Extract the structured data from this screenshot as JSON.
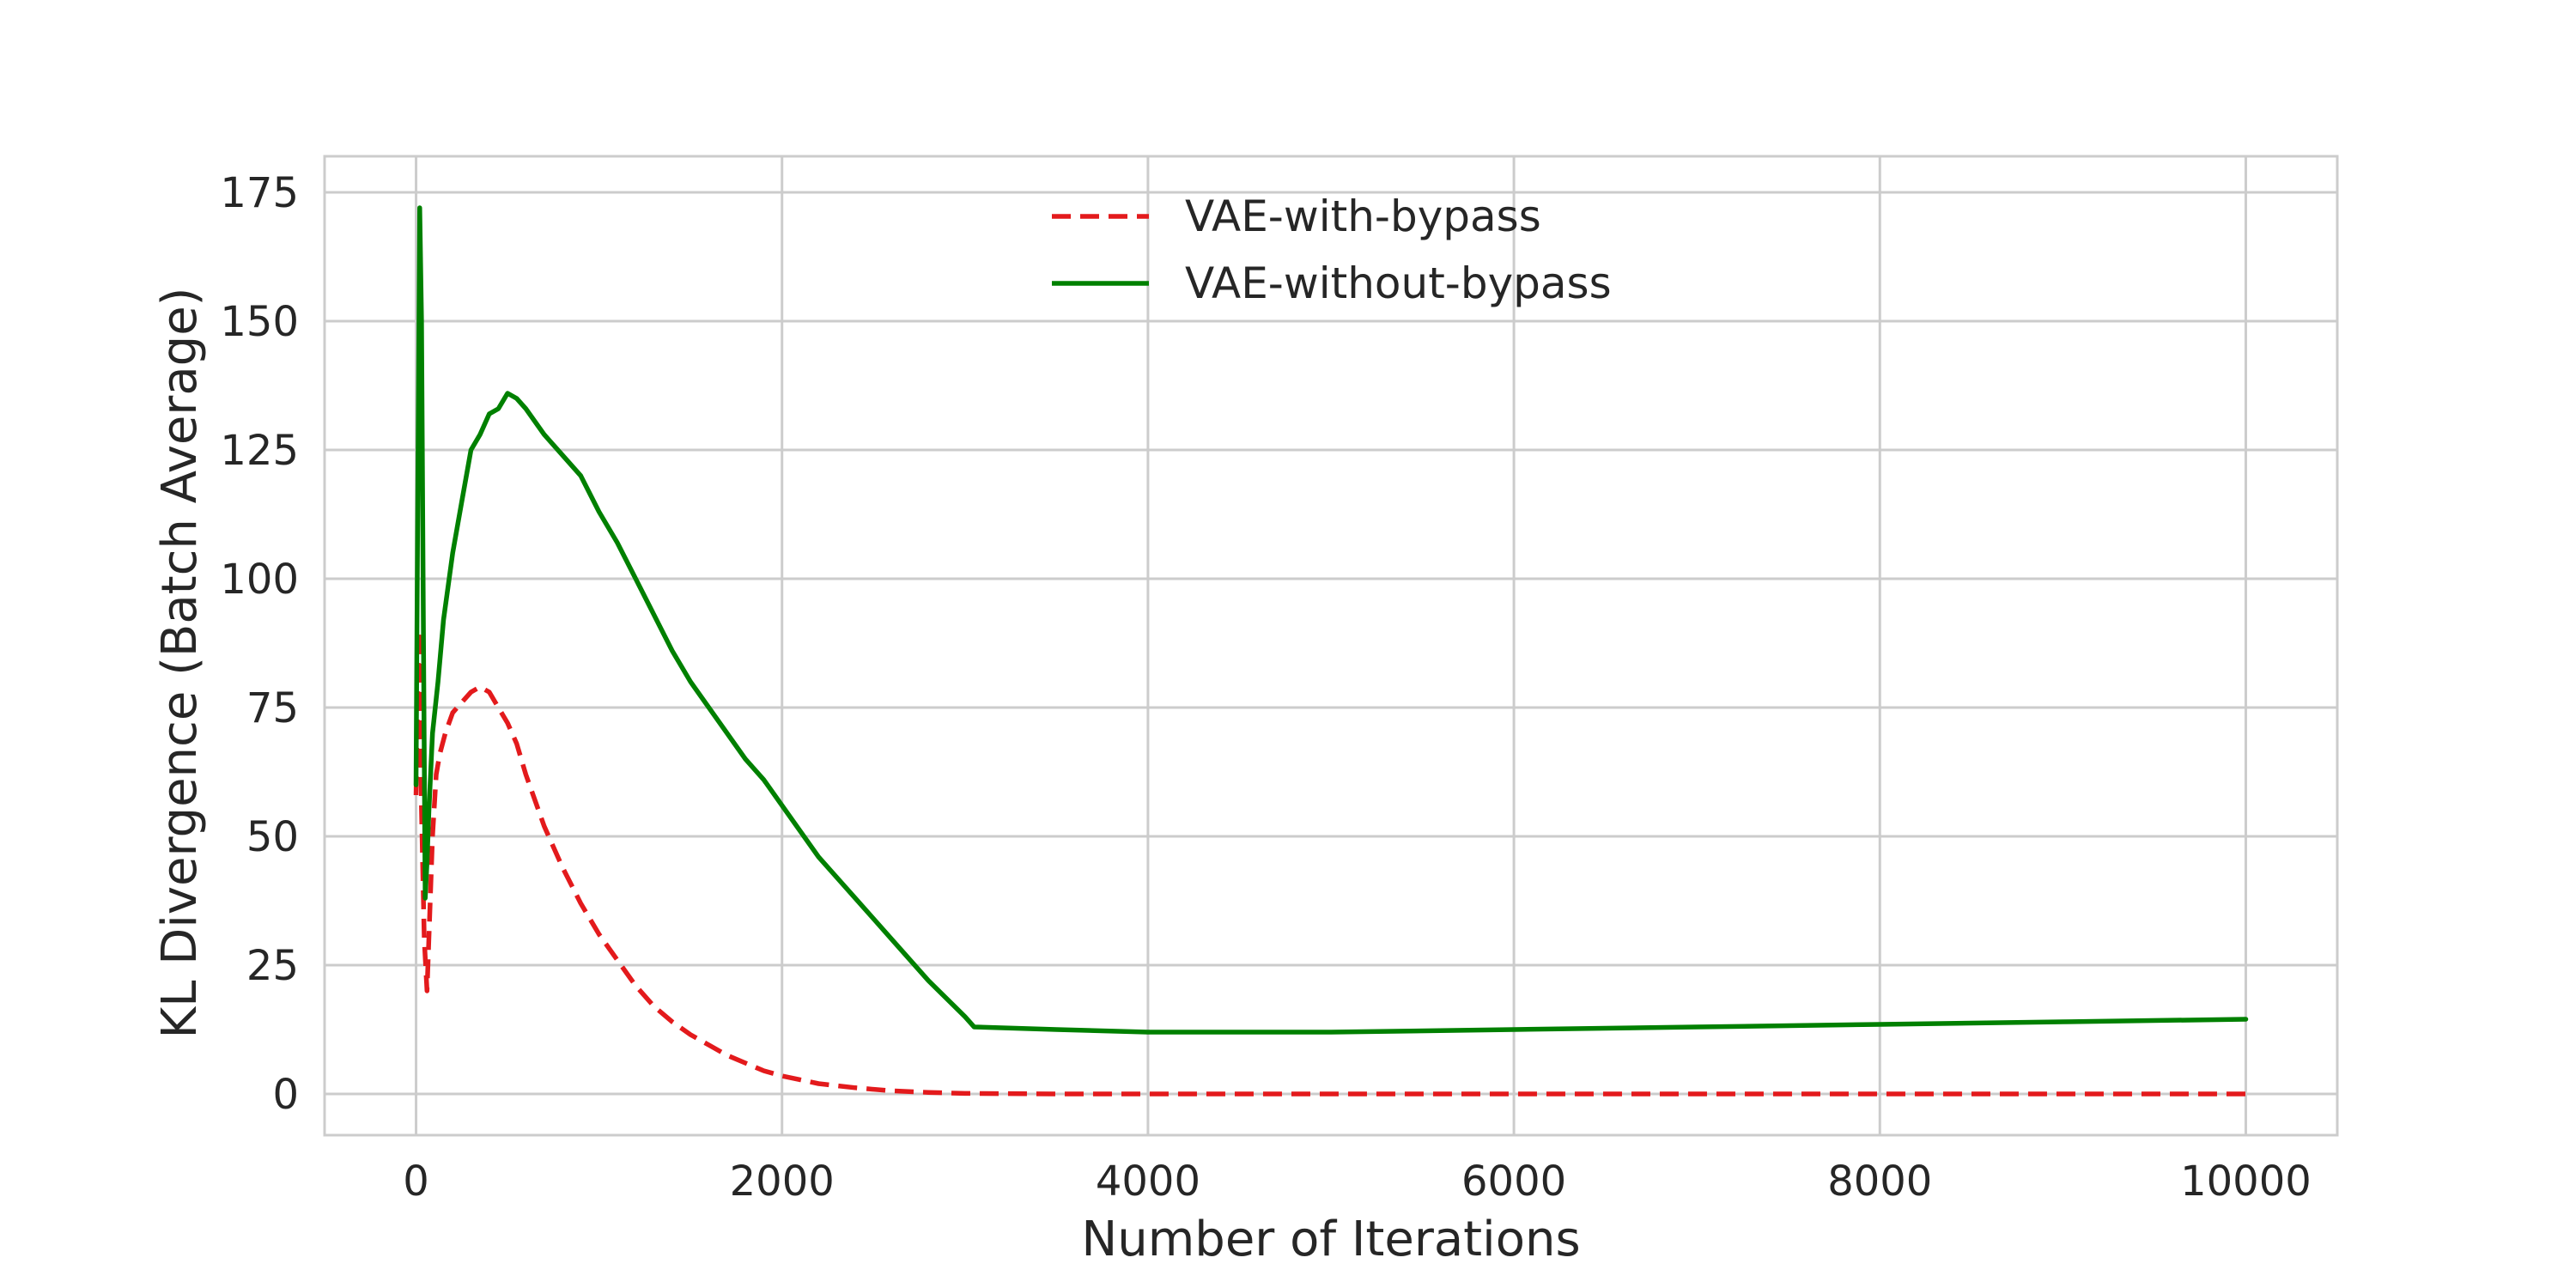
{
  "chart_data": {
    "type": "line",
    "title": "",
    "xlabel": "Number of Iterations",
    "ylabel": "KL Divergence (Batch Average)",
    "xlim": [
      -500,
      10500
    ],
    "ylim": [
      -8,
      182
    ],
    "xticks": [
      0,
      2000,
      4000,
      6000,
      8000,
      10000
    ],
    "yticks": [
      0,
      25,
      50,
      75,
      100,
      125,
      150,
      175
    ],
    "grid": true,
    "legend_position": "top-center",
    "series": [
      {
        "name": "VAE-with-bypass",
        "color": "#e31a1c",
        "style": "dashed",
        "x": [
          0,
          15,
          30,
          45,
          60,
          75,
          90,
          110,
          130,
          160,
          200,
          250,
          300,
          350,
          400,
          450,
          500,
          550,
          600,
          700,
          800,
          900,
          1000,
          1100,
          1200,
          1300,
          1400,
          1500,
          1600,
          1700,
          1800,
          1900,
          2000,
          2200,
          2400,
          2600,
          2800,
          3000,
          3500,
          4000,
          5000,
          6000,
          7000,
          8000,
          9000,
          10000
        ],
        "y": [
          58,
          90,
          55,
          30,
          20,
          35,
          50,
          62,
          66,
          70,
          74,
          76,
          78,
          79,
          78,
          75,
          72,
          68,
          62,
          52,
          44,
          37,
          31,
          26,
          21,
          17,
          14,
          11.5,
          9.5,
          7.5,
          6,
          4.5,
          3.5,
          2,
          1.2,
          0.6,
          0.3,
          0.1,
          0,
          0,
          0,
          0,
          0,
          0,
          0,
          0
        ]
      },
      {
        "name": "VAE-without-bypass",
        "color": "#008000",
        "style": "solid",
        "x": [
          0,
          10,
          20,
          30,
          40,
          50,
          60,
          70,
          90,
          120,
          150,
          200,
          250,
          300,
          350,
          400,
          450,
          500,
          550,
          600,
          700,
          800,
          900,
          1000,
          1100,
          1200,
          1300,
          1400,
          1500,
          1600,
          1700,
          1800,
          1900,
          2000,
          2100,
          2200,
          2400,
          2600,
          2800,
          3000,
          3050,
          3500,
          4000,
          4500,
          5000,
          6000,
          7000,
          8000,
          9000,
          10000
        ],
        "y": [
          60,
          120,
          172,
          150,
          90,
          38,
          45,
          55,
          70,
          80,
          92,
          105,
          115,
          125,
          128,
          132,
          133,
          136,
          135,
          133,
          128,
          124,
          120,
          113,
          107,
          100,
          93,
          86,
          80,
          75,
          70,
          65,
          61,
          56,
          51,
          46,
          38,
          30,
          22,
          15,
          13,
          12.5,
          12,
          12,
          12,
          12.5,
          13,
          13.5,
          14,
          14.5
        ]
      }
    ]
  }
}
